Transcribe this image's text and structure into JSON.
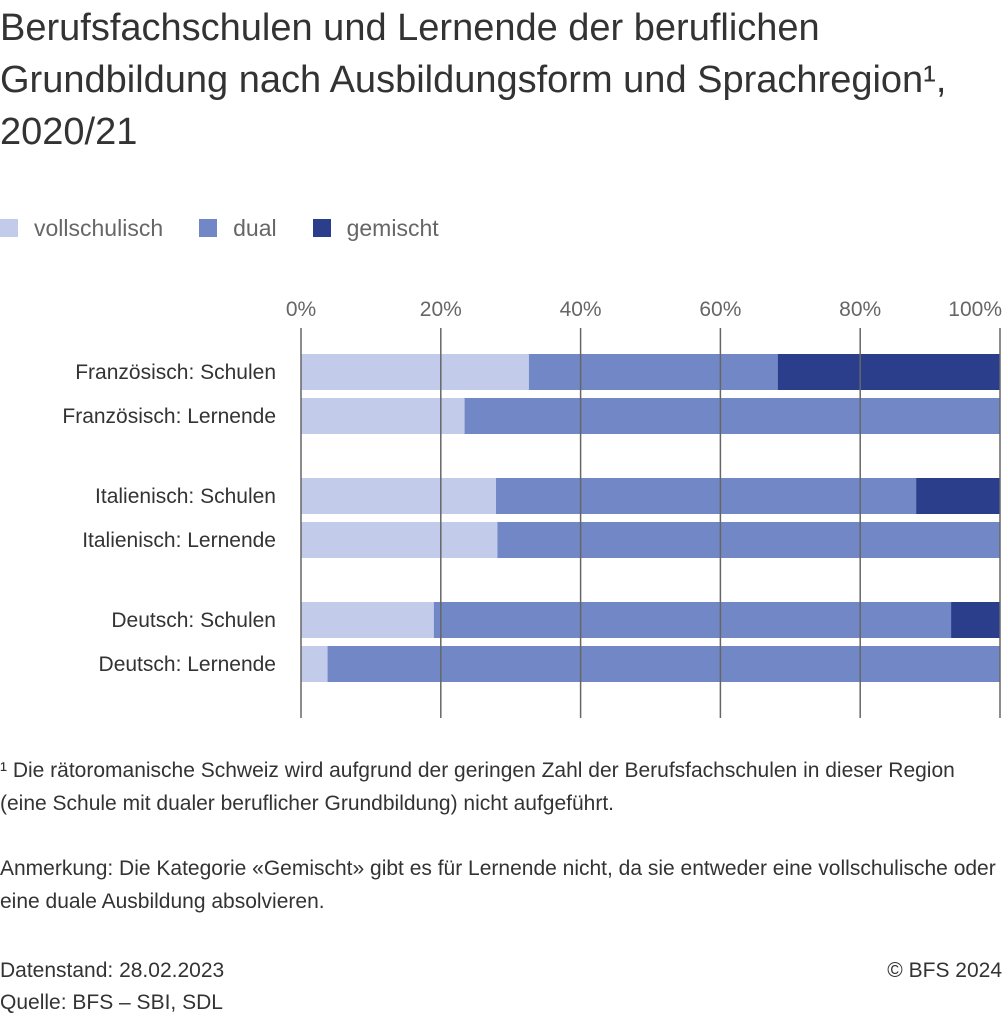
{
  "title": "Berufsfachschulen und Lernende der beruflichen Grundbildung nach Ausbildungsform und Sprachregion¹, 2020/21",
  "legend": [
    {
      "label": "vollschulisch",
      "color": "#c2cbea"
    },
    {
      "label": "dual",
      "color": "#7287c5"
    },
    {
      "label": "gemischt",
      "color": "#2a3e8c"
    }
  ],
  "chart_data": {
    "type": "bar",
    "orientation": "horizontal",
    "stacked": true,
    "xlim": [
      0,
      100
    ],
    "x_ticks": [
      "0%",
      "20%",
      "40%",
      "60%",
      "80%",
      "100%"
    ],
    "grid": true,
    "legend_position": "top-left",
    "categories": [
      "Französisch: Schulen",
      "Französisch: Lernende",
      "Italienisch: Schulen",
      "Italienisch: Lernende",
      "Deutsch: Schulen",
      "Deutsch: Lernende"
    ],
    "groups": [
      [
        0,
        1
      ],
      [
        2,
        3
      ],
      [
        4,
        5
      ]
    ],
    "series": [
      {
        "name": "vollschulisch",
        "color": "#c2cbea",
        "values": [
          32.6,
          23.4,
          27.9,
          28.1,
          19.0,
          3.8
        ]
      },
      {
        "name": "dual",
        "color": "#7287c5",
        "values": [
          35.6,
          76.6,
          60.1,
          71.9,
          74.0,
          96.2
        ]
      },
      {
        "name": "gemischt",
        "color": "#2a3e8c",
        "values": [
          31.8,
          0,
          12.0,
          0,
          7.0,
          0
        ]
      }
    ]
  },
  "footnote1": "¹ Die rätoromanische Schweiz wird aufgrund der geringen Zahl der Berufsfachschulen in dieser Region (eine Schule mit dualer beruflicher Grundbildung) nicht aufgeführt.",
  "note": "Anmerkung: Die Kategorie «Gemischt» gibt es für Lernende nicht, da sie entweder eine vollschulische oder eine duale Ausbildung absolvieren.",
  "data_status": "Datenstand: 28.02.2023",
  "source": "Quelle: BFS – SBI, SDL",
  "copyright": "© BFS 2024"
}
